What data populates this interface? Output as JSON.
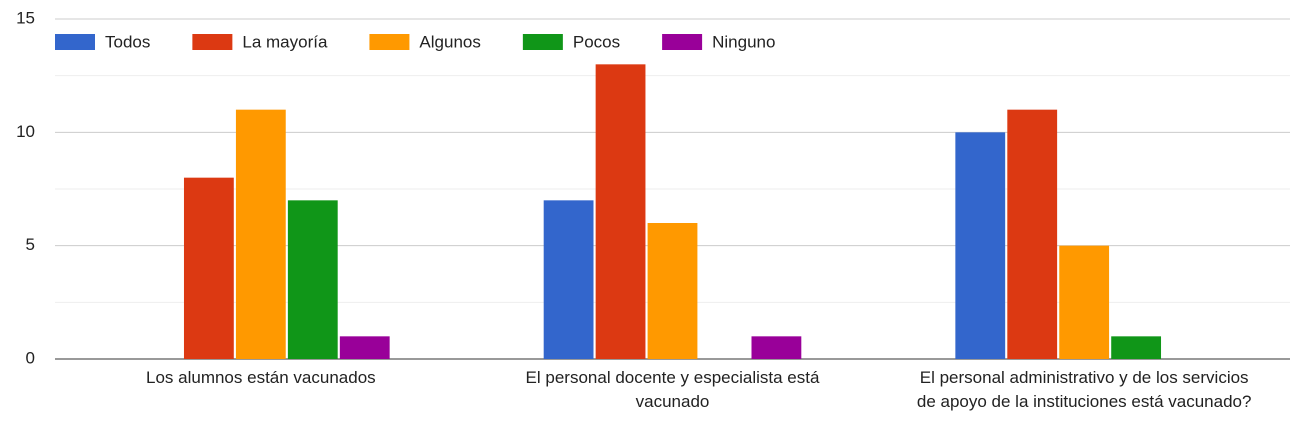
{
  "chart_data": {
    "type": "bar",
    "categories": [
      "Los alumnos están vacunados",
      "El personal docente y especialista está vacunado",
      "El personal administrativo y de los servicios de apoyo de la instituciones está vacunado?"
    ],
    "series": [
      {
        "name": "Todos",
        "color": "#3366cc",
        "values": [
          0,
          7,
          10
        ]
      },
      {
        "name": "La mayoría",
        "color": "#dc3912",
        "values": [
          8,
          13,
          11
        ]
      },
      {
        "name": "Algunos",
        "color": "#ff9900",
        "values": [
          11,
          6,
          5
        ]
      },
      {
        "name": "Pocos",
        "color": "#109618",
        "values": [
          7,
          0,
          1
        ]
      },
      {
        "name": "Ninguno",
        "color": "#990099",
        "values": [
          1,
          1,
          0
        ]
      }
    ],
    "ylim": [
      0,
      15
    ],
    "yticks": [
      0,
      5,
      10,
      15
    ],
    "minor_yticks": [
      2.5,
      7.5,
      12.5
    ],
    "grid": true,
    "legend": "top"
  }
}
